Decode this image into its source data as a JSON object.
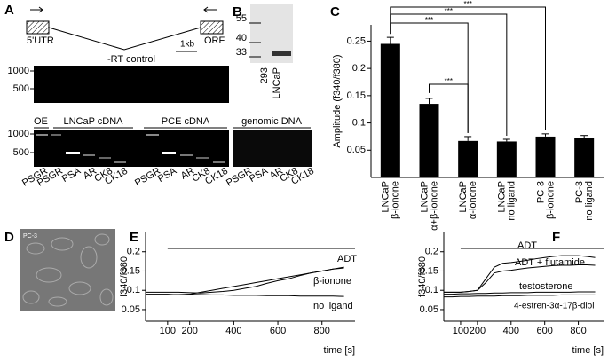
{
  "panels": [
    "A",
    "B",
    "C",
    "D",
    "E",
    "F"
  ],
  "panel_a": {
    "exon_labels": [
      "5'UTR",
      "ORF"
    ],
    "scale": "1kb",
    "rt_title": "-RT control",
    "rt_markers": [
      1000,
      500
    ],
    "groups": [
      "OE",
      "LNCaP cDNA",
      "PCE cDNA",
      "genomic DNA"
    ],
    "gel_markers": [
      1000,
      500
    ],
    "lanes": [
      "PSGR",
      "PSGR",
      "PSA",
      "AR",
      "CK8",
      "CK18",
      "PSGR",
      "PSA",
      "AR",
      "CK8",
      "CK18",
      "PSGR",
      "PSA",
      "AR",
      "CK8",
      "CK18"
    ]
  },
  "panel_b": {
    "markers": [
      55,
      40,
      33
    ],
    "lanes": [
      "293",
      "LNCaP"
    ]
  },
  "panel_d": {
    "label": "PC-3"
  },
  "chart_data": [
    {
      "type": "bar",
      "ylabel": "Amplitude (f340/f380)",
      "categories": [
        [
          "LNCaP",
          "β-ionone"
        ],
        [
          "LNCaP",
          "α+β-ionone"
        ],
        [
          "LNCaP",
          "α-ionone"
        ],
        [
          "LNCaP",
          "no ligand"
        ],
        [
          "PC-3",
          "β-ionone"
        ],
        [
          "PC-3",
          "no ligand"
        ]
      ],
      "values": [
        0.245,
        0.135,
        0.067,
        0.066,
        0.075,
        0.073
      ],
      "errors": [
        0.012,
        0.01,
        0.008,
        0.004,
        0.005,
        0.004
      ],
      "color": "#000000",
      "ylim": [
        0,
        0.28
      ],
      "yticks": [
        0.05,
        0.1,
        0.15,
        0.2,
        0.25
      ],
      "annotations": [
        "***",
        "***",
        "***",
        "***"
      ]
    },
    {
      "type": "line",
      "xlabel": "time [s]",
      "ylabel": "f340/f380",
      "x": [
        0,
        50,
        100,
        150,
        200,
        250,
        300,
        350,
        400,
        450,
        500,
        550,
        600,
        650,
        700,
        750,
        800,
        850,
        900
      ],
      "series": [
        {
          "name": "ADT",
          "color": "#000000",
          "values": [
            0.09,
            0.09,
            0.09,
            0.088,
            0.09,
            0.095,
            0.1,
            0.105,
            0.11,
            0.115,
            0.12,
            0.125,
            0.13,
            0.135,
            0.14,
            0.145,
            0.15,
            0.155,
            0.158
          ]
        },
        {
          "name": "β-ionone",
          "color": "#000000",
          "values": [
            0.095,
            0.095,
            0.095,
            0.095,
            0.094,
            0.093,
            0.095,
            0.097,
            0.1,
            0.105,
            0.11,
            0.118,
            0.125,
            0.13,
            0.138,
            0.145,
            0.15,
            0.155,
            0.16
          ]
        },
        {
          "name": "no ligand",
          "color": "#000000",
          "values": [
            0.088,
            0.088,
            0.089,
            0.089,
            0.09,
            0.089,
            0.088,
            0.088,
            0.087,
            0.087,
            0.087,
            0.086,
            0.086,
            0.086,
            0.085,
            0.085,
            0.085,
            0.085,
            0.084
          ]
        }
      ],
      "xlim": [
        0,
        950
      ],
      "xticks": [
        100,
        200,
        400,
        600,
        800
      ],
      "ylim": [
        0.02,
        0.25
      ],
      "yticks": [
        0.05,
        0.1,
        0.15,
        0.2
      ]
    },
    {
      "type": "line",
      "xlabel": "time [s]",
      "ylabel": "f340/f380",
      "x": [
        0,
        50,
        100,
        150,
        200,
        250,
        300,
        350,
        400,
        450,
        500,
        550,
        600,
        650,
        700,
        750,
        800,
        850,
        900
      ],
      "series": [
        {
          "name": "ADT",
          "color": "#000000",
          "values": [
            0.095,
            0.095,
            0.095,
            0.097,
            0.1,
            0.13,
            0.16,
            0.17,
            0.172,
            0.175,
            0.178,
            0.182,
            0.185,
            0.188,
            0.19,
            0.19,
            0.19,
            0.188,
            0.185
          ]
        },
        {
          "name": "ADT + flutamide",
          "color": "#000000",
          "values": [
            0.095,
            0.095,
            0.095,
            0.097,
            0.1,
            0.12,
            0.145,
            0.15,
            0.152,
            0.155,
            0.158,
            0.16,
            0.162,
            0.164,
            0.165,
            0.165,
            0.166,
            0.166,
            0.165
          ]
        },
        {
          "name": "testosterone",
          "color": "#000000",
          "values": [
            0.09,
            0.09,
            0.091,
            0.091,
            0.092,
            0.092,
            0.093,
            0.093,
            0.094,
            0.094,
            0.094,
            0.095,
            0.095,
            0.095,
            0.095,
            0.095,
            0.096,
            0.096,
            0.096
          ]
        },
        {
          "name": "4-estren-3α-17β-diol",
          "color": "#000000",
          "values": [
            0.083,
            0.083,
            0.084,
            0.084,
            0.085,
            0.085,
            0.085,
            0.086,
            0.086,
            0.086,
            0.087,
            0.087,
            0.087,
            0.087,
            0.088,
            0.088,
            0.088,
            0.088,
            0.088
          ]
        }
      ],
      "xlim": [
        0,
        950
      ],
      "xticks": [
        100,
        200,
        400,
        600,
        800
      ],
      "ylim": [
        0.02,
        0.25
      ],
      "yticks": [
        0.05,
        0.1,
        0.15,
        0.2
      ]
    }
  ]
}
